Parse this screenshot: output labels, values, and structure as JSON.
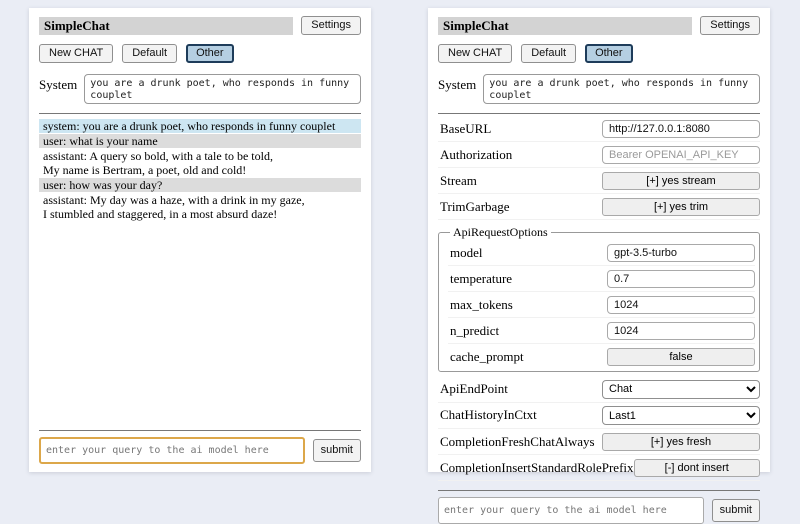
{
  "app": {
    "title": "SimpleChat",
    "settings_button": "Settings",
    "session_buttons": {
      "new_chat": "New CHAT",
      "default": "Default",
      "other": "Other"
    },
    "system_label": "System",
    "system_prompt": "you are a drunk poet, who responds in funny couplet",
    "query_placeholder": "enter your query to the ai model here",
    "submit_label": "submit"
  },
  "chat": {
    "messages": [
      {
        "role": "system",
        "text": "system: you are a drunk poet, who responds in funny couplet"
      },
      {
        "role": "user",
        "text": "user: what is your name"
      },
      {
        "role": "assistant",
        "text": "assistant: A query so bold, with a tale to be told,\nMy name is Bertram, a poet, old and cold!"
      },
      {
        "role": "user",
        "text": "user: how was your day?"
      },
      {
        "role": "assistant",
        "text": "assistant: My day was a haze, with a drink in my gaze,\nI stumbled and staggered, in a most absurd daze!"
      }
    ]
  },
  "settings": {
    "base_url": {
      "label": "BaseURL",
      "value": "http://127.0.0.1:8080"
    },
    "authorization": {
      "label": "Authorization",
      "placeholder": "Bearer OPENAI_API_KEY"
    },
    "stream": {
      "label": "Stream",
      "button": "[+] yes stream"
    },
    "trim_garbage": {
      "label": "TrimGarbage",
      "button": "[+] yes trim"
    },
    "api_request_options": {
      "legend": "ApiRequestOptions",
      "model": {
        "label": "model",
        "value": "gpt-3.5-turbo"
      },
      "temperature": {
        "label": "temperature",
        "value": "0.7"
      },
      "max_tokens": {
        "label": "max_tokens",
        "value": "1024"
      },
      "n_predict": {
        "label": "n_predict",
        "value": "1024"
      },
      "cache_prompt": {
        "label": "cache_prompt",
        "button": "false"
      }
    },
    "api_endpoint": {
      "label": "ApiEndPoint",
      "selected": "Chat"
    },
    "chat_history_in_ctxt": {
      "label": "ChatHistoryInCtxt",
      "selected": "Last1"
    },
    "completion_fresh_chat_always": {
      "label": "CompletionFreshChatAlways",
      "button": "[+] yes fresh"
    },
    "completion_insert_standard_role_prefix": {
      "label": "CompletionInsertStandardRolePrefix",
      "button": "[-] dont insert"
    }
  },
  "colors": {
    "page_background": "#eaedf5",
    "panel_background": "#ffffff",
    "title_bar": "#d3d3d3",
    "selected_session_button_bg": "#b5cfe2",
    "selected_session_button_border": "#1e3c5a",
    "system_message_bg": "#cde6f2",
    "user_message_bg": "#dcdcdc",
    "query_input_accent_border": "#dca74a"
  }
}
